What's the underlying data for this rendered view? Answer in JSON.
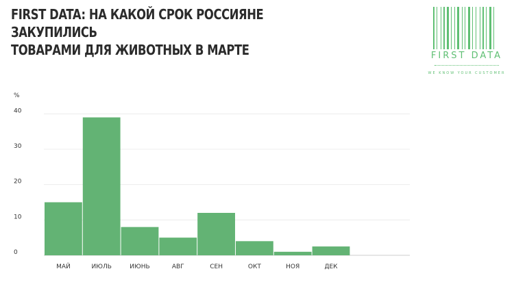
{
  "header": {
    "title_line1": "FIRST DATA: НА КАКОЙ СРОК РОССИЯНЕ ЗАКУПИЛИСЬ",
    "title_line2": "ТОВАРАМИ ДЛЯ ЖИВОТНЫХ В МАРТЕ"
  },
  "logo": {
    "brand": "FIRST DATA",
    "tagline": "WE KNOW YOUR CUSTOMER",
    "color": "#5fbf73"
  },
  "chart_data": {
    "type": "bar",
    "title": "FIRST DATA: НА КАКОЙ СРОК РОССИЯНЕ ЗАКУПИЛИСЬ ТОВАРАМИ ДЛЯ ЖИВОТНЫХ В МАРТЕ",
    "ylabel": "%",
    "xlabel": "",
    "categories": [
      "МАЙ",
      "ИЮЛЬ",
      "ИЮНЬ",
      "АВГ",
      "СЕН",
      "ОКТ",
      "НОЯ",
      "ДЕК"
    ],
    "values": [
      15,
      39,
      8,
      5,
      12,
      4,
      1,
      2.5
    ],
    "yticks": [
      0,
      10,
      20,
      30,
      40
    ],
    "ylim": [
      0,
      42
    ],
    "grid": true,
    "legend": "none",
    "bar_color": "#63b374"
  }
}
